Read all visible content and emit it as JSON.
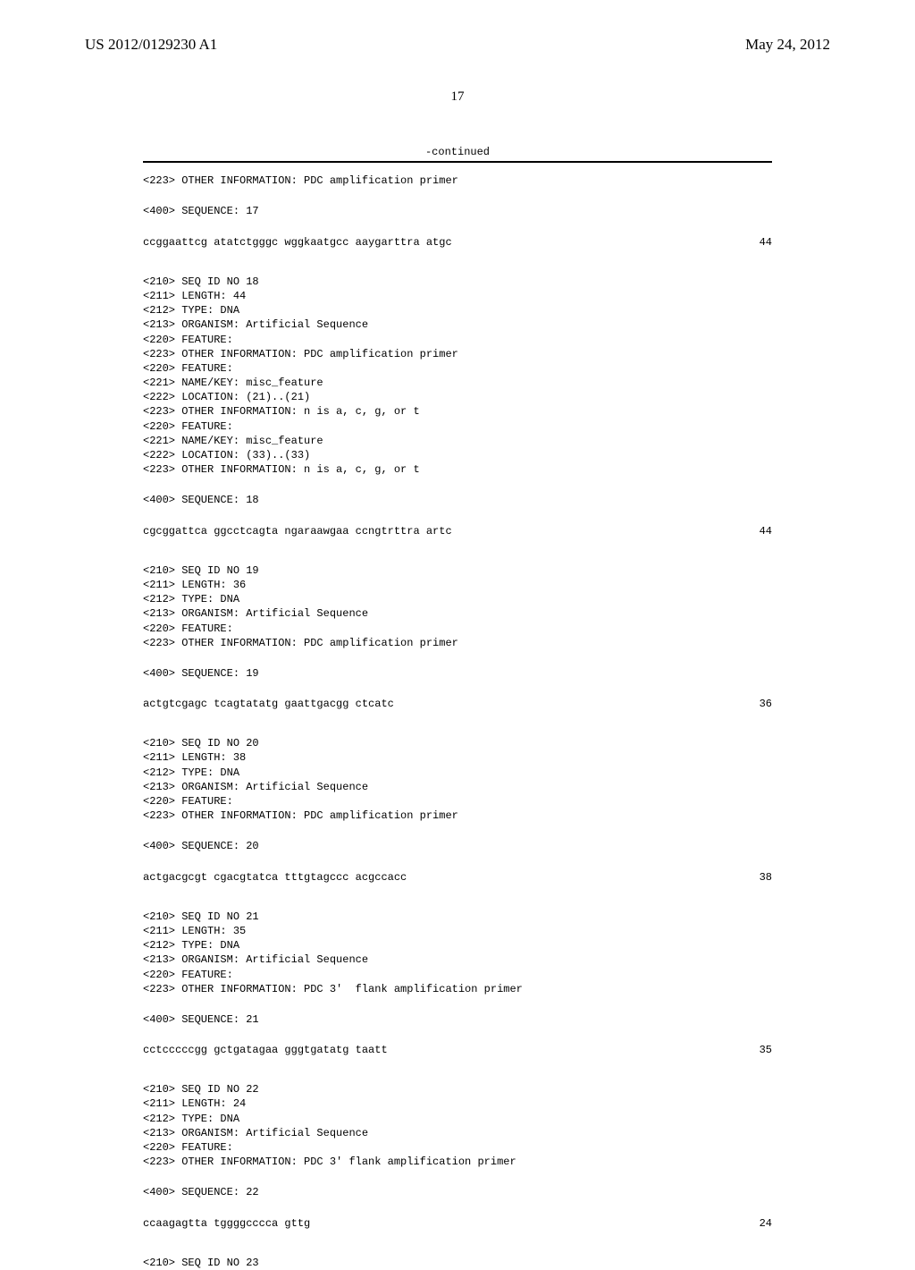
{
  "header": {
    "pub_number": "US 2012/0129230 A1",
    "pub_date": "May 24, 2012"
  },
  "page_number": "17",
  "continued_label": "-continued",
  "blocks": [
    {
      "lines": [
        "<223> OTHER INFORMATION: PDC amplification primer"
      ]
    },
    {
      "lines": [
        "<400> SEQUENCE: 17"
      ]
    },
    {
      "seq": "ccggaattcg atatctgggc wggkaatgcc aaygarttra atgc",
      "len": "44"
    },
    {
      "lines": [
        "<210> SEQ ID NO 18",
        "<211> LENGTH: 44",
        "<212> TYPE: DNA",
        "<213> ORGANISM: Artificial Sequence",
        "<220> FEATURE:",
        "<223> OTHER INFORMATION: PDC amplification primer",
        "<220> FEATURE:",
        "<221> NAME/KEY: misc_feature",
        "<222> LOCATION: (21)..(21)",
        "<223> OTHER INFORMATION: n is a, c, g, or t",
        "<220> FEATURE:",
        "<221> NAME/KEY: misc_feature",
        "<222> LOCATION: (33)..(33)",
        "<223> OTHER INFORMATION: n is a, c, g, or t"
      ]
    },
    {
      "lines": [
        "<400> SEQUENCE: 18"
      ]
    },
    {
      "seq": "cgcggattca ggcctcagta ngaraawgaa ccngtrttra artc",
      "len": "44"
    },
    {
      "lines": [
        "<210> SEQ ID NO 19",
        "<211> LENGTH: 36",
        "<212> TYPE: DNA",
        "<213> ORGANISM: Artificial Sequence",
        "<220> FEATURE:",
        "<223> OTHER INFORMATION: PDC amplification primer"
      ]
    },
    {
      "lines": [
        "<400> SEQUENCE: 19"
      ]
    },
    {
      "seq": "actgtcgagc tcagtatatg gaattgacgg ctcatc",
      "len": "36"
    },
    {
      "lines": [
        "<210> SEQ ID NO 20",
        "<211> LENGTH: 38",
        "<212> TYPE: DNA",
        "<213> ORGANISM: Artificial Sequence",
        "<220> FEATURE:",
        "<223> OTHER INFORMATION: PDC amplification primer"
      ]
    },
    {
      "lines": [
        "<400> SEQUENCE: 20"
      ]
    },
    {
      "seq": "actgacgcgt cgacgtatca tttgtagccc acgccacc",
      "len": "38"
    },
    {
      "lines": [
        "<210> SEQ ID NO 21",
        "<211> LENGTH: 35",
        "<212> TYPE: DNA",
        "<213> ORGANISM: Artificial Sequence",
        "<220> FEATURE:",
        "<223> OTHER INFORMATION: PDC 3'  flank amplification primer"
      ]
    },
    {
      "lines": [
        "<400> SEQUENCE: 21"
      ]
    },
    {
      "seq": "cctcccccgg gctgatagaa gggtgatatg taatt",
      "len": "35"
    },
    {
      "lines": [
        "<210> SEQ ID NO 22",
        "<211> LENGTH: 24",
        "<212> TYPE: DNA",
        "<213> ORGANISM: Artificial Sequence",
        "<220> FEATURE:",
        "<223> OTHER INFORMATION: PDC 3' flank amplification primer"
      ]
    },
    {
      "lines": [
        "<400> SEQUENCE: 22"
      ]
    },
    {
      "seq": "ccaagagtta tggggcccca gttg",
      "len": "24"
    },
    {
      "lines": [
        "<210> SEQ ID NO 23"
      ]
    }
  ]
}
